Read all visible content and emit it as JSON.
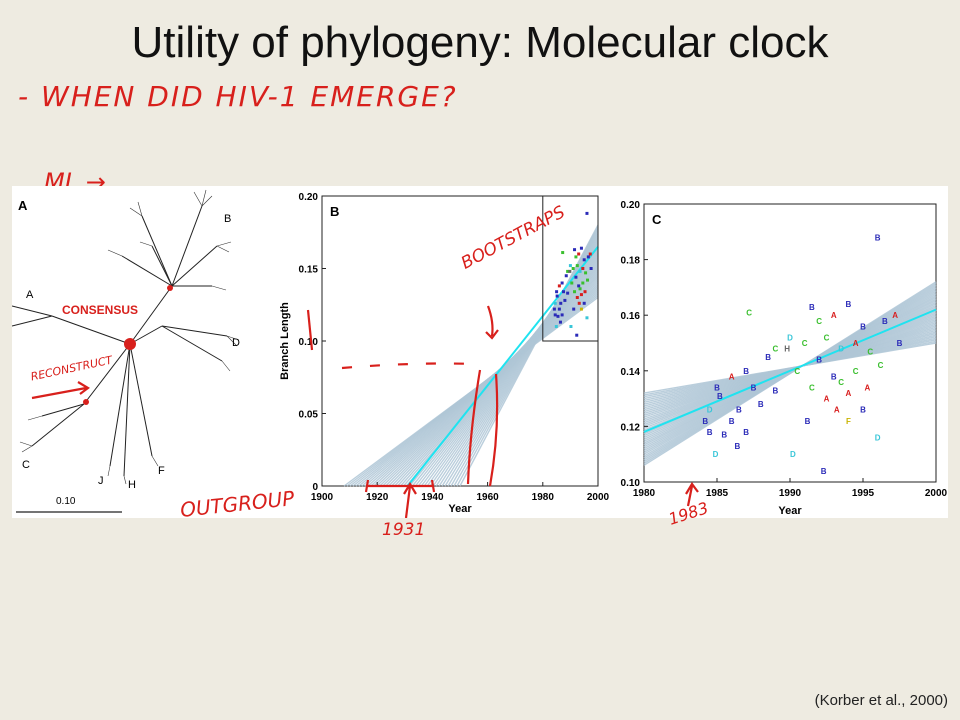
{
  "slide": {
    "title": "Utility of phylogeny: Molecular clock",
    "citation": "(Korber et al., 2000)"
  },
  "annotations": {
    "question": "- WHEN DID HIV-1 EMERGE?",
    "ml": "ML →",
    "reconstruct": "RECONSTRUCT",
    "bootstraps": "BOOTSTRAPS",
    "outgroup": "OUTGROUP",
    "year_1931": "1931",
    "year_1983": "1983"
  },
  "panel_a": {
    "label": "A",
    "consensus_label": "CONSENSUS",
    "scale_label": "0.10",
    "clade_labels": [
      "A",
      "B",
      "C",
      "D",
      "F",
      "H",
      "J"
    ]
  },
  "chart_data": [
    {
      "panel": "B",
      "type": "scatter",
      "xlabel": "Year",
      "ylabel": "Branch Length",
      "xlim": [
        1900,
        2000
      ],
      "ylim": [
        0,
        0.2
      ],
      "x_ticks": [
        "1900",
        "1920",
        "1940",
        "1960",
        "1980",
        "2000"
      ],
      "y_ticks": [
        "0",
        "0.05",
        "0.10",
        "0.15",
        "0.20"
      ],
      "fit_line": {
        "x": [
          1931,
          2000
        ],
        "y": [
          0.0,
          0.165
        ]
      },
      "bootstrap_band": {
        "x_min_at_zero": 1908,
        "x_max_at_zero": 1950
      },
      "inset_box": {
        "x": [
          1980,
          2000
        ],
        "y": [
          0.1,
          0.2
        ]
      }
    },
    {
      "panel": "C",
      "type": "scatter",
      "xlabel": "Year",
      "ylabel": "",
      "xlim": [
        1980,
        2000
      ],
      "ylim": [
        0.1,
        0.2
      ],
      "x_ticks": [
        "1980",
        "1985",
        "1990",
        "1995",
        "2000"
      ],
      "y_ticks": [
        "0.10",
        "0.12",
        "0.14",
        "0.16",
        "0.18",
        "0.20"
      ],
      "fit_line": {
        "x": [
          1980,
          2000
        ],
        "y": [
          0.118,
          0.162
        ]
      },
      "points": [
        {
          "x": 1984.2,
          "y": 0.122,
          "label": "B"
        },
        {
          "x": 1984.5,
          "y": 0.118,
          "label": "B"
        },
        {
          "x": 1984.5,
          "y": 0.126,
          "label": "D"
        },
        {
          "x": 1984.9,
          "y": 0.11,
          "label": "D"
        },
        {
          "x": 1985.0,
          "y": 0.134,
          "label": "B"
        },
        {
          "x": 1985.2,
          "y": 0.131,
          "label": "B"
        },
        {
          "x": 1985.5,
          "y": 0.117,
          "label": "B"
        },
        {
          "x": 1986.0,
          "y": 0.122,
          "label": "B"
        },
        {
          "x": 1986.0,
          "y": 0.138,
          "label": "A"
        },
        {
          "x": 1986.4,
          "y": 0.113,
          "label": "B"
        },
        {
          "x": 1986.5,
          "y": 0.126,
          "label": "B"
        },
        {
          "x": 1987.0,
          "y": 0.118,
          "label": "B"
        },
        {
          "x": 1987.0,
          "y": 0.14,
          "label": "B"
        },
        {
          "x": 1987.2,
          "y": 0.161,
          "label": "C"
        },
        {
          "x": 1987.5,
          "y": 0.134,
          "label": "B"
        },
        {
          "x": 1988.0,
          "y": 0.128,
          "label": "B"
        },
        {
          "x": 1988.5,
          "y": 0.145,
          "label": "B"
        },
        {
          "x": 1989.0,
          "y": 0.148,
          "label": "C"
        },
        {
          "x": 1989.0,
          "y": 0.133,
          "label": "B"
        },
        {
          "x": 1989.8,
          "y": 0.148,
          "label": "H"
        },
        {
          "x": 1990.0,
          "y": 0.152,
          "label": "D"
        },
        {
          "x": 1990.2,
          "y": 0.11,
          "label": "D"
        },
        {
          "x": 1990.5,
          "y": 0.14,
          "label": "C"
        },
        {
          "x": 1991.0,
          "y": 0.15,
          "label": "C"
        },
        {
          "x": 1991.2,
          "y": 0.122,
          "label": "B"
        },
        {
          "x": 1991.5,
          "y": 0.163,
          "label": "B"
        },
        {
          "x": 1991.5,
          "y": 0.134,
          "label": "C"
        },
        {
          "x": 1992.0,
          "y": 0.144,
          "label": "B"
        },
        {
          "x": 1992.0,
          "y": 0.158,
          "label": "C"
        },
        {
          "x": 1992.3,
          "y": 0.104,
          "label": "B"
        },
        {
          "x": 1992.5,
          "y": 0.13,
          "label": "A"
        },
        {
          "x": 1992.5,
          "y": 0.152,
          "label": "C"
        },
        {
          "x": 1993.0,
          "y": 0.16,
          "label": "A"
        },
        {
          "x": 1993.0,
          "y": 0.138,
          "label": "B"
        },
        {
          "x": 1993.2,
          "y": 0.126,
          "label": "A"
        },
        {
          "x": 1993.5,
          "y": 0.148,
          "label": "D"
        },
        {
          "x": 1993.5,
          "y": 0.136,
          "label": "C"
        },
        {
          "x": 1994.0,
          "y": 0.164,
          "label": "B"
        },
        {
          "x": 1994.0,
          "y": 0.132,
          "label": "A"
        },
        {
          "x": 1994.0,
          "y": 0.122,
          "label": "F"
        },
        {
          "x": 1994.5,
          "y": 0.15,
          "label": "A"
        },
        {
          "x": 1994.5,
          "y": 0.14,
          "label": "C"
        },
        {
          "x": 1995.0,
          "y": 0.156,
          "label": "B"
        },
        {
          "x": 1995.0,
          "y": 0.126,
          "label": "B"
        },
        {
          "x": 1995.3,
          "y": 0.134,
          "label": "A"
        },
        {
          "x": 1995.5,
          "y": 0.147,
          "label": "C"
        },
        {
          "x": 1996.0,
          "y": 0.188,
          "label": "B"
        },
        {
          "x": 1996.0,
          "y": 0.116,
          "label": "D"
        },
        {
          "x": 1996.2,
          "y": 0.142,
          "label": "C"
        },
        {
          "x": 1996.5,
          "y": 0.158,
          "label": "B"
        },
        {
          "x": 1997.2,
          "y": 0.16,
          "label": "A"
        },
        {
          "x": 1997.5,
          "y": 0.15,
          "label": "B"
        }
      ]
    }
  ],
  "colors": {
    "background": "#EEEBE1",
    "ink_red": "#D8201C",
    "fit_cyan": "#1FE3F0",
    "band_gray_blue": "#AFC6D6",
    "subtype_B": "#2B2BB8",
    "subtype_C": "#3ABF2E",
    "subtype_A": "#D81E1E",
    "subtype_D": "#39C6D8"
  }
}
